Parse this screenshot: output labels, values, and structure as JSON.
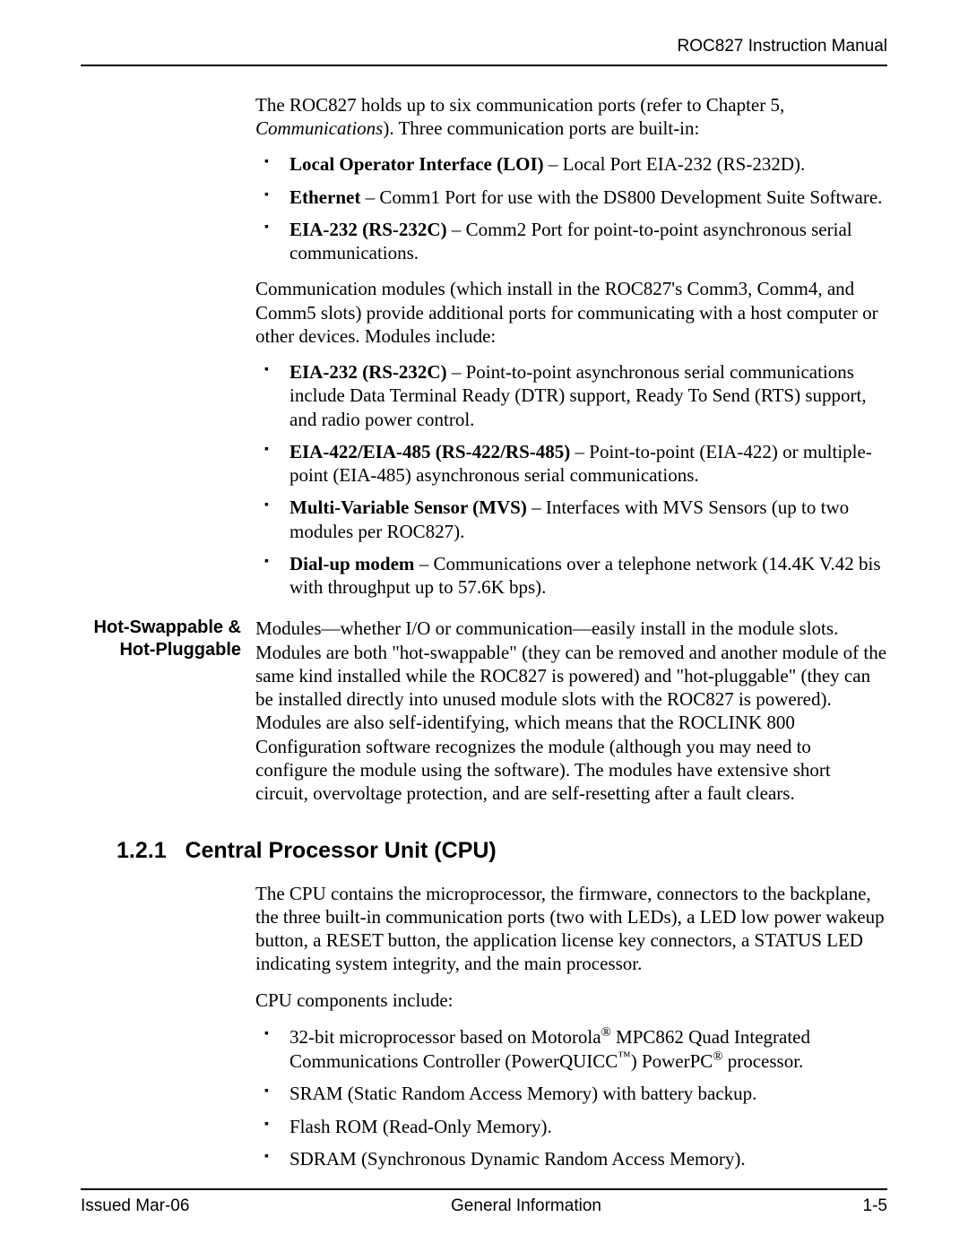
{
  "header": {
    "title": "ROC827 Instruction Manual"
  },
  "intro": {
    "p1a": "The ROC827 holds up to six communication ports (refer to Chapter 5, ",
    "p1b": "Communications",
    "p1c": "). Three communication ports are built-in:"
  },
  "list1": [
    {
      "bold": "Local Operator Interface (LOI)",
      "rest": " – Local Port EIA-232 (RS-232D)."
    },
    {
      "bold": "Ethernet",
      "rest": " – Comm1 Port for use with the DS800 Development Suite Software."
    },
    {
      "bold": "EIA-232 (RS-232C)",
      "rest": " – Comm2 Port for point-to-point asynchronous serial communications."
    }
  ],
  "p2": "Communication modules (which install in the ROC827's Comm3, Comm4, and Comm5 slots) provide additional ports for communicating with a host computer or other devices. Modules include:",
  "list2": [
    {
      "bold": "EIA-232 (RS-232C)",
      "rest": " – Point-to-point asynchronous serial communications include Data Terminal Ready (DTR) support, Ready To Send (RTS) support, and radio power control."
    },
    {
      "bold": "EIA-422/EIA-485 (RS-422/RS-485)",
      "rest": " – Point-to-point (EIA-422) or multiple-point (EIA-485) asynchronous serial communications."
    },
    {
      "bold": "Multi-Variable Sensor (MVS)",
      "rest": " – Interfaces with MVS Sensors (up to two modules per ROC827)."
    },
    {
      "bold": "Dial-up modem",
      "rest": " – Communications over a telephone network (14.4K V.42 bis with throughput up to 57.6K bps)."
    }
  ],
  "hot": {
    "label1": "Hot-Swappable &",
    "label2": "Hot-Pluggable",
    "text": "Modules—whether I/O or communication—easily install in the module slots. Modules are both \"hot-swappable\" (they can be removed and another module of the same kind installed while the ROC827 is powered) and \"hot-pluggable\" (they can be installed directly into unused module slots with the ROC827 is powered). Modules are also self-identifying, which means that the ROCLINK 800 Configuration software recognizes the module (although you may need to configure the module using the software). The modules have extensive short circuit, overvoltage protection, and are self-resetting after a fault clears."
  },
  "section": {
    "number": "1.2.1",
    "title": "Central Processor Unit (CPU)",
    "p1": "The CPU contains the microprocessor, the firmware, connectors to the backplane, the three built-in communication ports (two with LEDs), a LED low power wakeup button, a RESET button, the application license key connectors, a STATUS LED indicating system integrity, and the main processor.",
    "p2": "CPU components include:",
    "list": [
      "32-bit microprocessor based on Motorola® MPC862 Quad Integrated Communications Controller (PowerQUICC™) PowerPC® processor.",
      "SRAM (Static Random Access Memory) with battery backup.",
      "Flash ROM (Read-Only Memory).",
      "SDRAM (Synchronous Dynamic Random Access Memory)."
    ]
  },
  "footer": {
    "left": "Issued Mar-06",
    "center": "General Information",
    "right": "1-5"
  }
}
